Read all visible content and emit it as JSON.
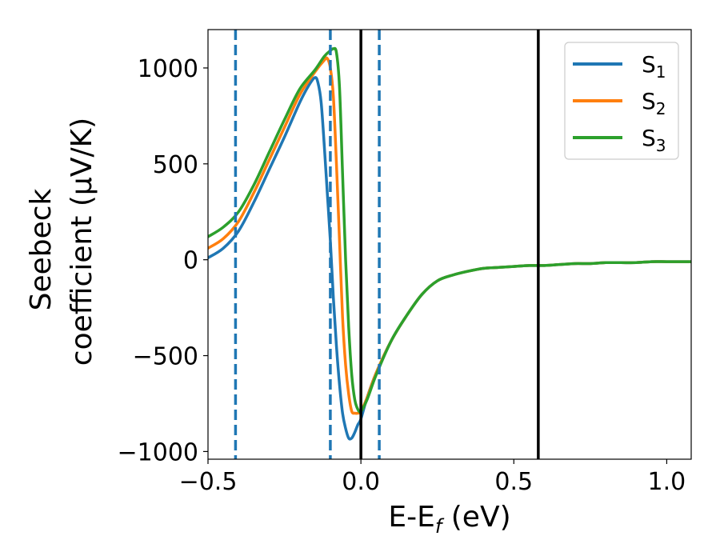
{
  "chart_data": {
    "type": "line",
    "xlabel": "E-E",
    "xlabel_sub": "f",
    "xlabel_unit": " (eV)",
    "ylabel_line1": "Seebeck",
    "ylabel_line2": "coefficient  (μV/K)",
    "xlim": [
      -0.5,
      1.08
    ],
    "ylim": [
      -1040,
      1200
    ],
    "xticks": [
      -0.5,
      0.0,
      0.5,
      1.0
    ],
    "xtick_labels": [
      "−0.5",
      "0.0",
      "0.5",
      "1.0"
    ],
    "yticks": [
      -1000,
      -500,
      0,
      500,
      1000
    ],
    "ytick_labels": [
      "−1000",
      "−500",
      "0",
      "500",
      "1000"
    ],
    "grid": false,
    "legend_position": "top-right",
    "dashed_vlines": [
      -0.41,
      -0.1,
      0.06
    ],
    "dashed_color": "#1f77b4",
    "solid_vlines": [
      0.0,
      0.58
    ],
    "solid_color": "#000000",
    "series": [
      {
        "name": "S",
        "sub": "1",
        "color": "#1f77b4",
        "x": [
          -0.5,
          -0.45,
          -0.4,
          -0.35,
          -0.3,
          -0.25,
          -0.2,
          -0.17,
          -0.15,
          -0.14,
          -0.13,
          -0.12,
          -0.11,
          -0.1,
          -0.09,
          -0.08,
          -0.07,
          -0.06,
          -0.05,
          -0.04,
          -0.03,
          -0.02,
          -0.01,
          0.0,
          0.02,
          0.05,
          0.1,
          0.15,
          0.2,
          0.25,
          0.3,
          0.35,
          0.4,
          0.45,
          0.5,
          0.55,
          0.6,
          0.65,
          0.7,
          0.75,
          0.8,
          0.85,
          0.9,
          0.95,
          1.0,
          1.05,
          1.08
        ],
        "y": [
          10,
          60,
          150,
          300,
          470,
          640,
          820,
          910,
          950,
          920,
          820,
          600,
          350,
          100,
          -200,
          -450,
          -650,
          -800,
          -880,
          -930,
          -930,
          -900,
          -860,
          -830,
          -720,
          -590,
          -420,
          -290,
          -180,
          -110,
          -80,
          -60,
          -45,
          -40,
          -35,
          -30,
          -30,
          -25,
          -20,
          -20,
          -15,
          -15,
          -15,
          -10,
          -10,
          -10,
          -10
        ]
      },
      {
        "name": "S",
        "sub": "2",
        "color": "#ff7f0e",
        "x": [
          -0.5,
          -0.45,
          -0.4,
          -0.35,
          -0.3,
          -0.25,
          -0.2,
          -0.15,
          -0.12,
          -0.11,
          -0.1,
          -0.09,
          -0.08,
          -0.07,
          -0.06,
          -0.05,
          -0.04,
          -0.03,
          -0.02,
          -0.01,
          0.0,
          0.02,
          0.05,
          0.1,
          0.15,
          0.2,
          0.25,
          0.3,
          0.35,
          0.4,
          0.45,
          0.5,
          0.55,
          0.6,
          0.65,
          0.7,
          0.75,
          0.8,
          0.85,
          0.9,
          0.95,
          1.0,
          1.05,
          1.08
        ],
        "y": [
          60,
          110,
          200,
          350,
          520,
          690,
          860,
          980,
          1040,
          1050,
          1000,
          850,
          500,
          100,
          -300,
          -550,
          -700,
          -790,
          -800,
          -800,
          -790,
          -720,
          -590,
          -420,
          -290,
          -180,
          -110,
          -80,
          -60,
          -45,
          -40,
          -35,
          -30,
          -30,
          -25,
          -20,
          -20,
          -15,
          -15,
          -15,
          -10,
          -10,
          -10,
          -10
        ]
      },
      {
        "name": "S",
        "sub": "3",
        "color": "#2ca02c",
        "x": [
          -0.5,
          -0.45,
          -0.4,
          -0.35,
          -0.3,
          -0.25,
          -0.2,
          -0.15,
          -0.12,
          -0.1,
          -0.09,
          -0.08,
          -0.07,
          -0.06,
          -0.05,
          -0.04,
          -0.03,
          -0.02,
          -0.01,
          0.0,
          0.02,
          0.05,
          0.1,
          0.15,
          0.2,
          0.25,
          0.3,
          0.35,
          0.4,
          0.45,
          0.5,
          0.55,
          0.6,
          0.65,
          0.7,
          0.75,
          0.8,
          0.85,
          0.9,
          0.95,
          1.0,
          1.05,
          1.08
        ],
        "y": [
          120,
          170,
          250,
          390,
          560,
          730,
          890,
          990,
          1060,
          1090,
          1100,
          1080,
          900,
          450,
          0,
          -350,
          -600,
          -730,
          -780,
          -790,
          -730,
          -600,
          -420,
          -290,
          -180,
          -110,
          -80,
          -60,
          -45,
          -40,
          -35,
          -30,
          -30,
          -25,
          -20,
          -20,
          -15,
          -15,
          -15,
          -10,
          -10,
          -10,
          -10
        ]
      }
    ]
  }
}
